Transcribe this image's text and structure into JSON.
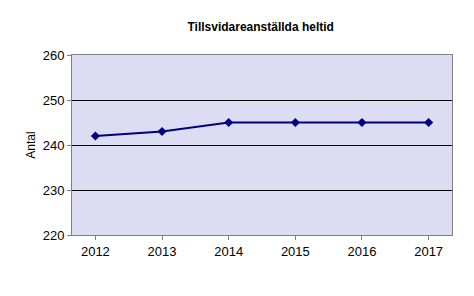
{
  "chart_data": {
    "type": "line",
    "title": "Tillsvidareanställda heltid",
    "y_label": "Antal",
    "categories": [
      "2012",
      "2013",
      "2014",
      "2015",
      "2016",
      "2017"
    ],
    "values": [
      242,
      243,
      245,
      245,
      245,
      245
    ],
    "color": "#000080",
    "marker": "diamond",
    "ylim": [
      220,
      260
    ],
    "yticks": [
      220,
      230,
      240,
      250,
      260
    ],
    "grid": true
  }
}
